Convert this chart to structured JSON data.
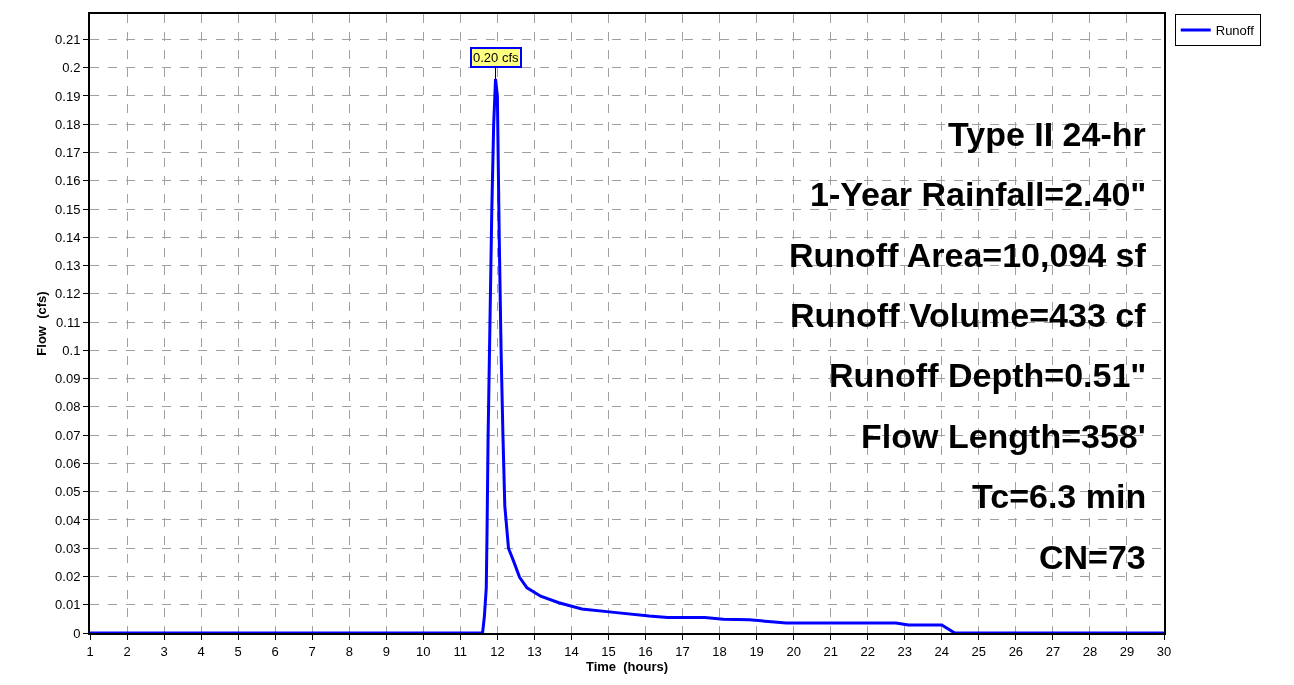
{
  "chart_data": {
    "type": "line",
    "xlabel": "Time  (hours)",
    "ylabel": "Flow  (cfs)",
    "x": [
      1,
      11.6,
      11.65,
      11.7,
      11.72,
      11.75,
      11.8,
      11.85,
      11.9,
      11.95,
      12.0,
      12.05,
      12.1,
      12.15,
      12.2,
      12.3,
      12.45,
      12.6,
      12.8,
      13.17,
      13.66,
      14.28,
      15.15,
      16.1,
      16.6,
      17.6,
      18.1,
      18.8,
      19.8,
      22.76,
      23.1,
      24.0,
      24.35,
      30
    ],
    "series": [
      {
        "name": "Runoff",
        "color": "#0000ff",
        "values": [
          0,
          0,
          0.006,
          0.016,
          0.035,
          0.07,
          0.11,
          0.15,
          0.18,
          0.196,
          0.19,
          0.14,
          0.1,
          0.07,
          0.045,
          0.03,
          0.025,
          0.0197,
          0.016,
          0.013,
          0.0107,
          0.0085,
          0.0073,
          0.006,
          0.0055,
          0.0055,
          0.0049,
          0.0047,
          0.0035,
          0.0035,
          0.0028,
          0.0028,
          0,
          0
        ]
      }
    ],
    "xlim": [
      1,
      30
    ],
    "xticks": [
      1,
      2,
      3,
      4,
      5,
      6,
      7,
      8,
      9,
      10,
      11,
      12,
      13,
      14,
      15,
      16,
      17,
      18,
      19,
      20,
      21,
      22,
      23,
      24,
      25,
      26,
      27,
      28,
      29,
      30
    ],
    "ylim": [
      0,
      0.219
    ],
    "yticks": [
      0,
      0.01,
      0.02,
      0.03,
      0.04,
      0.05,
      0.06,
      0.07,
      0.08,
      0.09,
      0.1,
      0.11,
      0.12,
      0.13,
      0.14,
      0.15,
      0.16,
      0.17,
      0.18,
      0.19,
      0.2,
      0.21
    ],
    "annotations": [
      {
        "text": "0.20 cfs",
        "x": 11.95,
        "y": 0.196
      },
      "Type II 24-hr",
      "1-Year Rainfall=2.40\"",
      "Runoff Area=10,094 sf",
      "Runoff Volume=433 cf",
      "Runoff Depth=0.51\"",
      "Flow Length=358'",
      "Tc=6.3 min",
      "CN=73"
    ],
    "grid": true,
    "legend": "top right",
    "marker": "none",
    "line_style": "solid"
  }
}
